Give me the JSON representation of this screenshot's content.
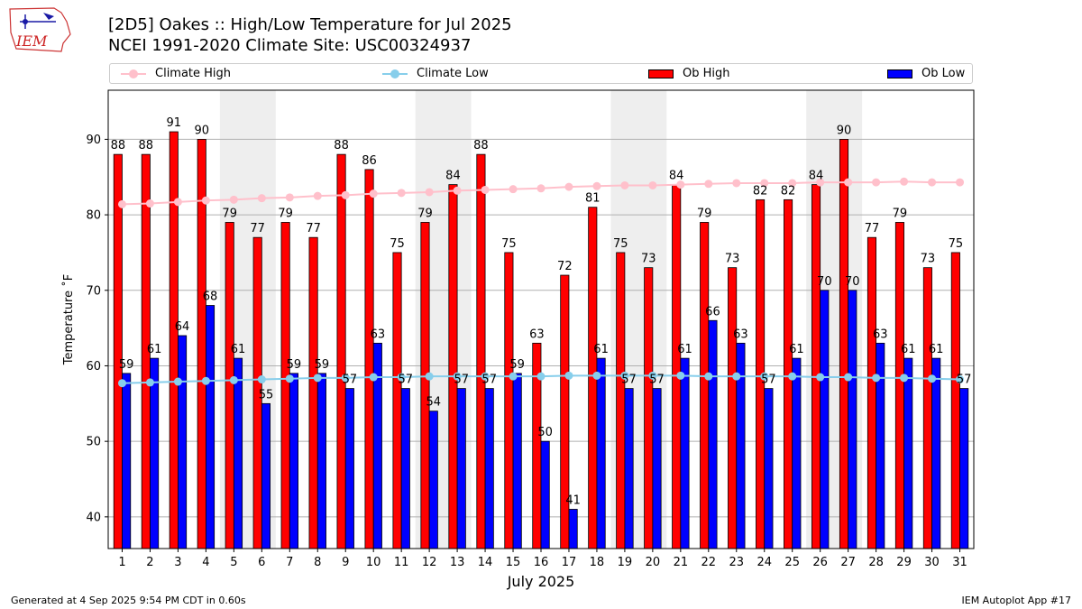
{
  "header": {
    "title_line1": "[2D5] Oakes :: High/Low Temperature for Jul 2025",
    "title_line2": "NCEI 1991-2020 Climate Site: USC00324937"
  },
  "logo": {
    "text": "IEM"
  },
  "footer": {
    "left": "Generated at 4 Sep 2025 9:54 PM CDT in 0.60s",
    "right": "IEM Autoplot App #17"
  },
  "colors": {
    "ob_high": "#ff0000",
    "ob_low": "#0000ff",
    "climate_high": "#ffc0cb",
    "climate_low": "#87ceeb",
    "weekend_shade": "#eeeeee"
  },
  "chart_data": {
    "type": "bar",
    "title": "[2D5] Oakes :: High/Low Temperature for Jul 2025",
    "xlabel": "July 2025",
    "ylabel": "Temperature ˚F",
    "ylim": [
      35.8,
      96.5
    ],
    "yticks": [
      40,
      50,
      60,
      70,
      80,
      90
    ],
    "grid": "y",
    "legend_position": "top",
    "categories": [
      "1",
      "2",
      "3",
      "4",
      "5",
      "6",
      "7",
      "8",
      "9",
      "10",
      "11",
      "12",
      "13",
      "14",
      "15",
      "16",
      "17",
      "18",
      "19",
      "20",
      "21",
      "22",
      "23",
      "24",
      "25",
      "26",
      "27",
      "28",
      "29",
      "30",
      "31"
    ],
    "series": [
      {
        "name": "Ob High",
        "kind": "bar",
        "values": [
          88,
          88,
          91,
          90,
          79,
          77,
          79,
          77,
          88,
          86,
          75,
          79,
          84,
          88,
          75,
          63,
          72,
          81,
          75,
          73,
          84,
          79,
          73,
          82,
          82,
          84,
          90,
          77,
          79,
          73,
          75
        ]
      },
      {
        "name": "Ob Low",
        "kind": "bar",
        "values": [
          59,
          61,
          64,
          68,
          61,
          55,
          59,
          59,
          57,
          63,
          57,
          54,
          57,
          57,
          59,
          50,
          41,
          61,
          57,
          57,
          61,
          66,
          63,
          57,
          61,
          70,
          70,
          63,
          61,
          61,
          57
        ]
      },
      {
        "name": "Climate High",
        "kind": "line",
        "values": [
          81.4,
          81.5,
          81.7,
          81.9,
          82.0,
          82.2,
          82.3,
          82.5,
          82.6,
          82.8,
          82.9,
          83.0,
          83.2,
          83.3,
          83.4,
          83.5,
          83.7,
          83.8,
          83.9,
          83.9,
          84.0,
          84.1,
          84.2,
          84.2,
          84.2,
          84.3,
          84.3,
          84.3,
          84.4,
          84.3,
          84.3
        ]
      },
      {
        "name": "Climate Low",
        "kind": "line",
        "values": [
          57.7,
          57.8,
          57.9,
          58.0,
          58.1,
          58.2,
          58.3,
          58.4,
          58.4,
          58.5,
          58.5,
          58.6,
          58.6,
          58.6,
          58.6,
          58.6,
          58.7,
          58.7,
          58.7,
          58.7,
          58.7,
          58.6,
          58.6,
          58.6,
          58.6,
          58.5,
          58.5,
          58.4,
          58.4,
          58.3,
          58.2
        ]
      }
    ],
    "shaded_days": [
      [
        5,
        6
      ],
      [
        12,
        13
      ],
      [
        19,
        20
      ],
      [
        26,
        27
      ]
    ]
  }
}
